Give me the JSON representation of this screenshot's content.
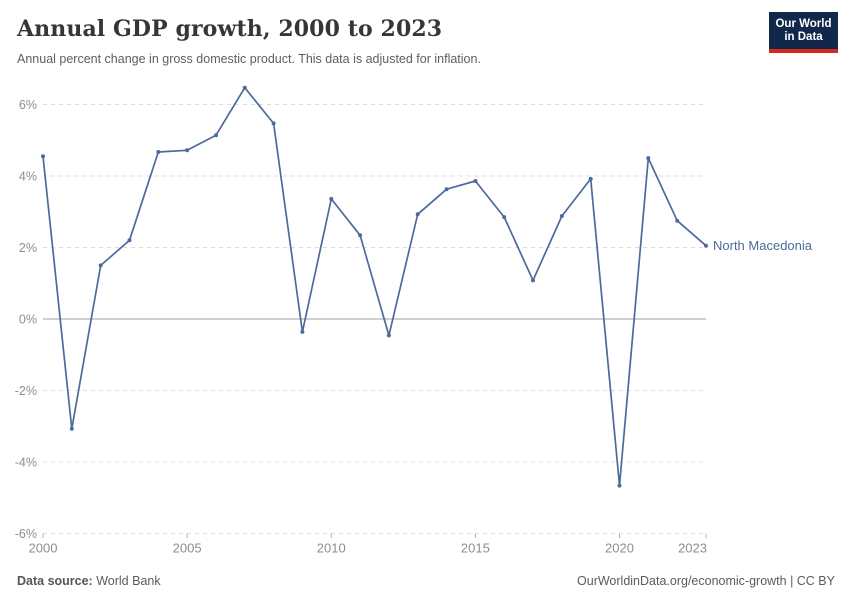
{
  "header": {
    "title": "Annual GDP growth, 2000 to 2023",
    "subtitle": "Annual percent change in gross domestic product. This data is adjusted for inflation.",
    "logo": {
      "line1": "Our World",
      "line2": "in Data",
      "bg_color": "#12284B",
      "accent_color": "#D22A1C"
    }
  },
  "chart_data": {
    "type": "line",
    "title": "Annual GDP growth, 2000 to 2023",
    "xlabel": "",
    "ylabel": "",
    "ylim": [
      -6,
      6
    ],
    "grid": "horizontal dashed gridlines, solid zero line",
    "legend_position": "end-of-line label",
    "y_ticks": [
      6,
      4,
      2,
      0,
      -2,
      -4,
      -6
    ],
    "y_tick_suffix": "%",
    "x_ticks": [
      2000,
      2005,
      2010,
      2015,
      2020,
      2023
    ],
    "series": [
      {
        "name": "North Macedonia",
        "color": "#4C6A9C",
        "x": [
          2000,
          2001,
          2002,
          2003,
          2004,
          2005,
          2006,
          2007,
          2008,
          2009,
          2010,
          2011,
          2012,
          2013,
          2014,
          2015,
          2016,
          2017,
          2018,
          2019,
          2020,
          2021,
          2022,
          2023
        ],
        "values": [
          4.55,
          -3.07,
          1.5,
          2.2,
          4.67,
          4.72,
          5.14,
          6.47,
          5.47,
          -0.36,
          3.36,
          2.34,
          -0.46,
          2.93,
          3.63,
          3.86,
          2.85,
          1.08,
          2.88,
          3.92,
          -4.66,
          4.5,
          2.75,
          2.05
        ]
      }
    ],
    "colors": {
      "gridline": "#dcdcdc",
      "zero_line": "#a0a0a0",
      "tick_label": "#8e8e8e"
    }
  },
  "footer": {
    "datasource_label": "Data source:",
    "datasource_value": "World Bank",
    "credit": "OurWorldinData.org/economic-growth | CC BY"
  }
}
